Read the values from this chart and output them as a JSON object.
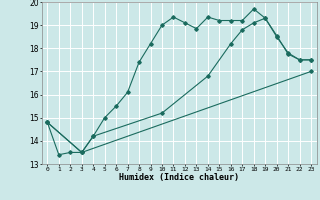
{
  "xlabel": "Humidex (Indice chaleur)",
  "bg_color": "#cce8e8",
  "line_color": "#1a6b5e",
  "grid_color": "#ffffff",
  "xlim": [
    -0.5,
    23.5
  ],
  "ylim": [
    13,
    20
  ],
  "yticks": [
    13,
    14,
    15,
    16,
    17,
    18,
    19,
    20
  ],
  "xticks": [
    0,
    1,
    2,
    3,
    4,
    5,
    6,
    7,
    8,
    9,
    10,
    11,
    12,
    13,
    14,
    15,
    16,
    17,
    18,
    19,
    20,
    21,
    22,
    23
  ],
  "series": [
    {
      "x": [
        0,
        1,
        2,
        3,
        4,
        5,
        6,
        7,
        8,
        9,
        10,
        11,
        12,
        13,
        14,
        15,
        16,
        17,
        18,
        19,
        20,
        21,
        22,
        23
      ],
      "y": [
        14.8,
        13.4,
        13.5,
        13.5,
        14.2,
        15.0,
        15.5,
        16.1,
        17.4,
        18.2,
        19.0,
        19.35,
        19.1,
        18.85,
        19.35,
        19.2,
        19.2,
        19.2,
        19.7,
        19.3,
        18.5,
        17.8,
        17.5,
        17.5
      ]
    },
    {
      "x": [
        0,
        3,
        4,
        10,
        14,
        16,
        17,
        18,
        19,
        20,
        21,
        22,
        23
      ],
      "y": [
        14.8,
        13.5,
        14.2,
        15.2,
        16.8,
        18.2,
        18.8,
        19.1,
        19.3,
        18.55,
        17.75,
        17.5,
        17.5
      ]
    },
    {
      "x": [
        0,
        3,
        23
      ],
      "y": [
        14.8,
        13.5,
        17.0
      ]
    }
  ]
}
